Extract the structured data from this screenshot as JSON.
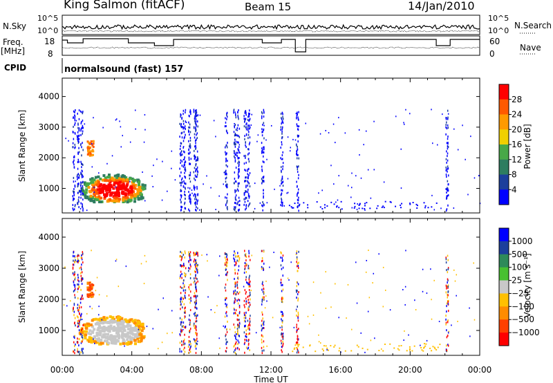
{
  "header": {
    "station": "King Salmon (fitACF)",
    "beam": "Beam 15",
    "date": "14/Jan/2010"
  },
  "noise_panel": {
    "left_label": "N.Sky",
    "right_label": "N.Search",
    "left_ticks": [
      "10^5",
      "10^0"
    ],
    "right_ticks": [
      "10^5",
      "10^0"
    ]
  },
  "freq_panel": {
    "left_label_line1": "Freq.",
    "left_label_line2": "[MHz]",
    "right_label": "Nave",
    "left_ticks": [
      "18",
      "8"
    ],
    "right_ticks": [
      "60",
      "0"
    ]
  },
  "cpid_panel": {
    "label": "CPID",
    "program": "normalsound (fast) 157"
  },
  "colors": {
    "power_scale": [
      "#0000ff",
      "#1c3f9c",
      "#2e7d60",
      "#48a848",
      "#f0d000",
      "#ff9a00",
      "#ff5a00",
      "#ff0000"
    ],
    "velocity_scale": [
      "#ff0000",
      "#ff4000",
      "#ff8c00",
      "#ffc000",
      "#c8c8c8",
      "#48c030",
      "#2e8a5a",
      "#1c3f9c",
      "#0000ff"
    ]
  },
  "chart_data": [
    {
      "type": "heatmap",
      "panel": "power",
      "xlabel": "",
      "ylabel": "Slant Range [km]",
      "xlim": [
        0,
        24
      ],
      "ylim": [
        200,
        4600
      ],
      "yticks": [
        1000,
        2000,
        3000,
        4000
      ],
      "colorbar": {
        "label": "Power [dB]",
        "range": [
          0,
          32
        ],
        "ticks": [
          "4",
          "8",
          "12",
          "16",
          "20",
          "24",
          "28"
        ]
      }
    },
    {
      "type": "heatmap",
      "panel": "velocity",
      "xlabel": "Time UT",
      "ylabel": "Slant Range [km]",
      "xlim": [
        0,
        24
      ],
      "ylim": [
        200,
        4600
      ],
      "yticks": [
        1000,
        2000,
        3000,
        4000
      ],
      "xticks": [
        "00:00",
        "04:00",
        "08:00",
        "12:00",
        "16:00",
        "20:00",
        "00:00"
      ],
      "colorbar": {
        "label": "Velocity [m s⁻¹]",
        "ticks": [
          "1000",
          "500",
          "100",
          "25",
          "−25",
          "−100",
          "−500",
          "−1000"
        ]
      }
    }
  ]
}
